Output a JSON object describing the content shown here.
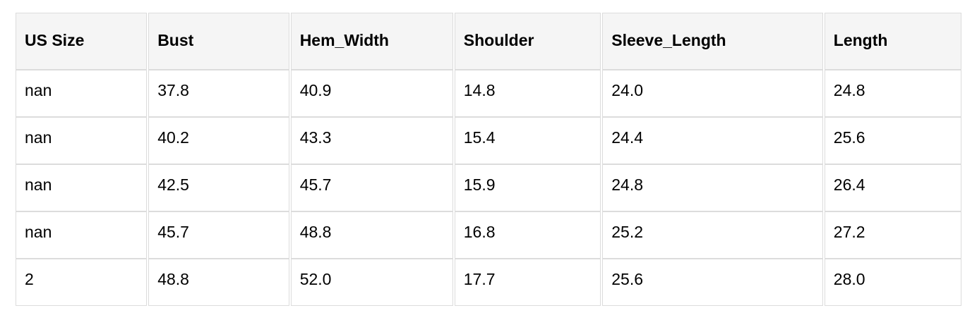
{
  "table": {
    "columns": [
      "US Size",
      "Bust",
      "Hem_Width",
      "Shoulder",
      "Sleeve_Length",
      "Length"
    ],
    "rows": [
      [
        "nan",
        "37.8",
        "40.9",
        "14.8",
        "24.0",
        "24.8"
      ],
      [
        "nan",
        "40.2",
        "43.3",
        "15.4",
        "24.4",
        "25.6"
      ],
      [
        "nan",
        "42.5",
        "45.7",
        "15.9",
        "24.8",
        "26.4"
      ],
      [
        "nan",
        "45.7",
        "48.8",
        "16.8",
        "25.2",
        "27.2"
      ],
      [
        "2",
        "48.8",
        "52.0",
        "17.7",
        "25.6",
        "28.0"
      ]
    ]
  },
  "colors": {
    "header_bg": "#f5f5f5",
    "cell_border": "#dcdcdc",
    "text": "#000000",
    "page_bg": "#ffffff"
  }
}
